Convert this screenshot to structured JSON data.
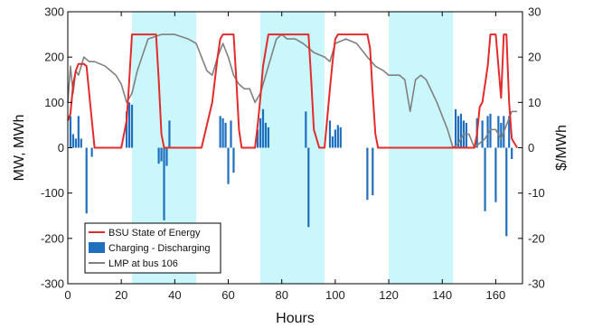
{
  "chart_data": {
    "type": "line",
    "xlabel": "Hours",
    "ylabel_left": "MW, MWh",
    "ylabel_right": "$/MWh",
    "xlim": [
      0,
      170
    ],
    "ylim_left": [
      -300,
      300
    ],
    "ylim_right": [
      -30,
      30
    ],
    "xticks": [
      0,
      20,
      40,
      60,
      80,
      100,
      120,
      140,
      160
    ],
    "yticks_left": [
      -300,
      -200,
      -100,
      0,
      100,
      200,
      300
    ],
    "yticks_right": [
      -30,
      -20,
      -10,
      0,
      10,
      20,
      30
    ],
    "grid": false,
    "legend_position": "bottom-left",
    "colors": {
      "soe": "#e32b2b",
      "bars": "#1f6fbf",
      "lmp": "#808080",
      "band": "#c9f7fb"
    },
    "shaded_intervals": [
      [
        24,
        48
      ],
      [
        72,
        96
      ],
      [
        120,
        144
      ]
    ],
    "series": [
      {
        "name": "BSU State of Energy",
        "axis": "left",
        "style": "line",
        "x": [
          0,
          1,
          2,
          3,
          4,
          6,
          7,
          8,
          10,
          15,
          20,
          22,
          23,
          24,
          25,
          32,
          33,
          34,
          35,
          36,
          38,
          44,
          50,
          54,
          56,
          57,
          58,
          62,
          63,
          64,
          65,
          66,
          68,
          70,
          71,
          72,
          73,
          75,
          80,
          85,
          88,
          90,
          91,
          92,
          94,
          95,
          96,
          98,
          99,
          100,
          101,
          112,
          113,
          114,
          115,
          116,
          117,
          120,
          130,
          140,
          145,
          150,
          152,
          153,
          154,
          155,
          157,
          158,
          160,
          161,
          162,
          163,
          164,
          165,
          166,
          168
        ],
        "y": [
          60,
          75,
          140,
          170,
          185,
          185,
          180,
          120,
          0,
          0,
          0,
          60,
          150,
          250,
          250,
          250,
          250,
          150,
          30,
          0,
          0,
          0,
          0,
          100,
          200,
          240,
          250,
          250,
          150,
          40,
          0,
          0,
          0,
          0,
          50,
          110,
          180,
          250,
          250,
          250,
          250,
          250,
          150,
          40,
          0,
          0,
          0,
          130,
          190,
          240,
          250,
          250,
          220,
          120,
          30,
          0,
          0,
          0,
          0,
          0,
          0,
          0,
          0,
          30,
          90,
          100,
          180,
          250,
          250,
          180,
          110,
          250,
          250,
          100,
          20,
          0
        ]
      },
      {
        "name": "Charging - Discharging",
        "axis": "left",
        "style": "bar",
        "x": [
          1,
          2,
          3,
          4,
          5,
          7,
          9,
          22,
          23,
          24,
          34,
          35,
          36,
          37,
          38,
          57,
          58,
          59,
          60,
          61,
          62,
          71,
          72,
          73,
          74,
          75,
          89,
          90,
          98,
          99,
          100,
          101,
          102,
          112,
          114,
          145,
          146,
          147,
          148,
          149,
          153,
          155,
          156,
          157,
          158,
          160,
          161,
          162,
          163,
          164,
          165,
          166
        ],
        "values": [
          70,
          30,
          20,
          70,
          20,
          -145,
          -20,
          80,
          100,
          95,
          -35,
          -30,
          -160,
          -40,
          60,
          70,
          65,
          55,
          -80,
          60,
          -55,
          40,
          65,
          85,
          55,
          45,
          80,
          -175,
          60,
          25,
          40,
          50,
          45,
          -115,
          -105,
          85,
          70,
          75,
          60,
          55,
          65,
          60,
          -140,
          70,
          75,
          -120,
          70,
          55,
          70,
          -195,
          70,
          -25
        ]
      },
      {
        "name": "LMP at bus 106",
        "axis": "right",
        "style": "line",
        "x": [
          0,
          1,
          2,
          3,
          4,
          6,
          8,
          10,
          14,
          16,
          18,
          20,
          22,
          24,
          26,
          30,
          35,
          40,
          45,
          48,
          50,
          52,
          54,
          56,
          58,
          60,
          62,
          64,
          66,
          68,
          70,
          72,
          74,
          76,
          78,
          80,
          82,
          85,
          88,
          92,
          96,
          98,
          100,
          104,
          108,
          112,
          115,
          118,
          120,
          122,
          124,
          126,
          128,
          130,
          132,
          134,
          138,
          142,
          144,
          146,
          148,
          150,
          152,
          154,
          156,
          158,
          160,
          162,
          164,
          166,
          168
        ],
        "y": [
          10,
          18,
          12,
          17,
          16,
          20,
          19,
          19,
          18,
          17,
          16,
          14,
          10,
          12,
          17,
          24,
          25,
          25,
          24,
          23,
          20,
          17,
          16,
          20,
          23,
          20,
          16,
          14,
          13,
          13,
          10,
          12,
          16,
          20,
          24,
          25,
          24,
          24,
          23,
          21,
          20,
          19,
          23,
          24,
          23,
          20,
          18,
          17,
          16,
          16,
          16,
          15,
          8,
          15,
          16,
          15,
          10,
          4,
          0,
          1,
          3,
          3,
          0,
          1,
          2,
          4,
          4,
          2,
          5,
          8,
          8
        ]
      }
    ]
  }
}
